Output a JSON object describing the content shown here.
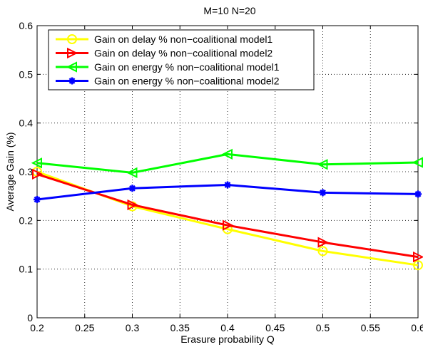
{
  "chart_data": {
    "type": "line",
    "title": "M=10  N=20",
    "xlabel": "Erasure probability Q",
    "ylabel": "Average Gain (%)",
    "xlim": [
      0.2,
      0.6
    ],
    "ylim": [
      0,
      0.6
    ],
    "xticks": [
      0.2,
      0.25,
      0.3,
      0.35,
      0.4,
      0.45,
      0.5,
      0.55,
      0.6
    ],
    "xtick_labels": [
      "0.2",
      "0.25",
      "0.3",
      "0.35",
      "0.4",
      "0.45",
      "0.5",
      "0.55",
      "0.6"
    ],
    "yticks": [
      0,
      0.1,
      0.2,
      0.3,
      0.4,
      0.5,
      0.6
    ],
    "ytick_labels": [
      "0",
      "0.1",
      "0.2",
      "0.3",
      "0.4",
      "0.5",
      "0.6"
    ],
    "grid": true,
    "legend_position": "top-left",
    "x": [
      0.2,
      0.3,
      0.4,
      0.5,
      0.6
    ],
    "series": [
      {
        "name": "Gain on delay % non−coalitional model1",
        "color": "#ffff00",
        "marker": "circle",
        "values": [
          0.3,
          0.229,
          0.182,
          0.137,
          0.108
        ]
      },
      {
        "name": "Gain on delay % non−coalitional model2",
        "color": "#ff0000",
        "marker": "triangle-right",
        "values": [
          0.295,
          0.232,
          0.19,
          0.155,
          0.125
        ]
      },
      {
        "name": "Gain on energy % non−coalitional model1",
        "color": "#00ff00",
        "marker": "triangle-left",
        "values": [
          0.318,
          0.298,
          0.336,
          0.315,
          0.319
        ]
      },
      {
        "name": "Gain on energy % non−coalitional model2",
        "color": "#0000ff",
        "marker": "asterisk",
        "values": [
          0.243,
          0.266,
          0.273,
          0.257,
          0.254
        ]
      }
    ]
  }
}
